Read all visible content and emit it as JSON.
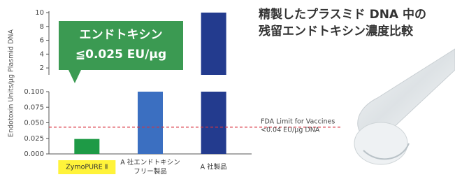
{
  "chart_data": {
    "type": "broken-bar",
    "title": [
      "精製したプラスミド DNA 中の",
      "残留エンドトキシン濃度比較"
    ],
    "y_title": "Endotoxin Units/µg Plasmid DNA",
    "categories": [
      [
        "ZymoPURE Ⅱ"
      ],
      [
        "A 社エンドトキシン",
        "フリー製品"
      ],
      [
        "A 社製品"
      ]
    ],
    "values": [
      0.024,
      0.1,
      10
    ],
    "colors": [
      "#1e9a46",
      "#3b6fc1",
      "#233b8e"
    ],
    "upper": {
      "ylim": [
        1,
        10
      ],
      "yticks": [
        2,
        4,
        6,
        8,
        10
      ]
    },
    "lower": {
      "ylim": [
        0,
        0.1
      ],
      "yticks": [
        {
          "value": 0,
          "label": "0.000"
        },
        {
          "value": 0.025,
          "label": "0.025"
        },
        {
          "value": 0.05,
          "label": "0.050"
        },
        {
          "value": 0.075,
          "label": "0.075"
        },
        {
          "value": 0.1,
          "label": "0.100"
        }
      ]
    },
    "reference_line": {
      "value": 0.043,
      "color": "#d9333f",
      "label": [
        "FDA Limit for Vaccines",
        "<0.04 EU/µg DNA"
      ]
    },
    "callout": [
      "エンドトキシン",
      "≦0.025 EU/µg"
    ]
  }
}
